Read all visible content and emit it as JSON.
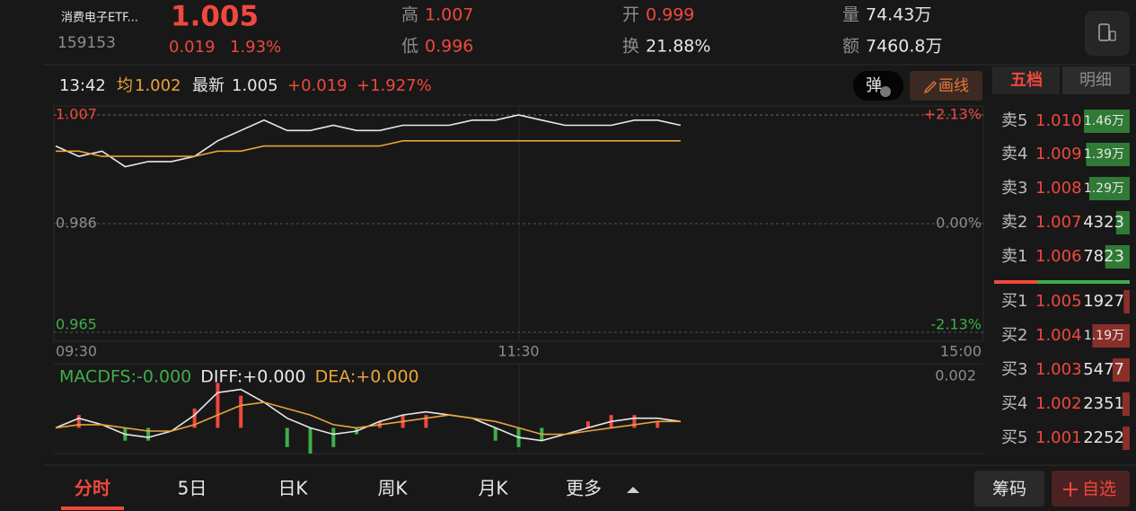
{
  "header": {
    "name": "消费电子ETF...",
    "code": "159153",
    "price": "1.005",
    "change": "0.019",
    "pct": "1.93%",
    "high_label": "高",
    "high": "1.007",
    "low_label": "低",
    "low": "0.996",
    "open_label": "开",
    "open": "0.999",
    "turnover_label": "换",
    "turnover": "21.88%",
    "volume_label": "量",
    "volume": "74.43万",
    "amount_label": "额",
    "amount": "7460.8万"
  },
  "info": {
    "time": "13:42",
    "avg_label": "均",
    "avg": "1.002",
    "latest_label": "最新",
    "latest": "1.005",
    "change": "+0.019",
    "pct": "+1.927%",
    "popup_button": "弹",
    "draw_button": "画线"
  },
  "chart_data": [
    {
      "type": "line",
      "categories": [
        "09:30",
        null,
        null,
        null,
        null,
        null,
        null,
        null,
        null,
        null,
        null,
        null,
        null,
        null,
        null,
        null,
        null,
        null,
        null,
        null,
        "11:30",
        null,
        null,
        null,
        null,
        null,
        null,
        null,
        null,
        null,
        null,
        null,
        null,
        null,
        null,
        null,
        null,
        null,
        null,
        null,
        "15:00"
      ],
      "series": [
        {
          "color": "#e8e8e8",
          "values": [
            1.001,
            0.999,
            1.0,
            0.997,
            0.998,
            0.998,
            0.999,
            1.002,
            1.004,
            1.006,
            1.004,
            1.004,
            1.005,
            1.004,
            1.004,
            1.005,
            1.005,
            1.005,
            1.006,
            1.006,
            1.007,
            1.006,
            1.005,
            1.005,
            1.005,
            1.006,
            1.006,
            1.005,
            null,
            null,
            null,
            null,
            null,
            null,
            null,
            null,
            null,
            null,
            null,
            null,
            null
          ]
        },
        {
          "color": "#e9a23b",
          "values": [
            1.0,
            1.0,
            0.999,
            0.999,
            0.999,
            0.999,
            0.999,
            1.0,
            1.0,
            1.001,
            1.001,
            1.001,
            1.001,
            1.001,
            1.001,
            1.002,
            1.002,
            1.002,
            1.002,
            1.002,
            1.002,
            1.002,
            1.002,
            1.002,
            1.002,
            1.002,
            1.002,
            1.002,
            null,
            null,
            null,
            null,
            null,
            null,
            null,
            null,
            null,
            null,
            null,
            null,
            null
          ]
        }
      ],
      "ylim": [
        0.965,
        1.007
      ],
      "yticks": [
        1.007,
        0.986,
        0.965
      ],
      "y2lim": [
        -2.13,
        2.13
      ],
      "y2ticks": [
        {
          "value": 2.13,
          "label": "+2.13%"
        },
        {
          "value": 0,
          "label": "0.00%"
        },
        {
          "value": -2.13,
          "label": "-2.13%"
        }
      ],
      "grid": true,
      "up_color": "#f0483c",
      "flat_color": "#8d8d8d",
      "down_color": "#3fae49"
    },
    {
      "type": "line",
      "series": [
        {
          "name": "MACDFS:-0.000",
          "type": "bar",
          "color": "#3fae49",
          "positive_color": "#f0483c",
          "values": [
            0,
            0.0004,
            0,
            -0.0004,
            -0.0004,
            0,
            0.0006,
            0.0014,
            0.001,
            0,
            -0.0006,
            -0.0008,
            -0.0006,
            -0.0002,
            0.0002,
            0.0004,
            0.0004,
            0,
            0,
            -0.0004,
            -0.0006,
            -0.0004,
            0,
            0.0002,
            0.0004,
            0.0004,
            0.0002,
            0,
            null,
            null,
            null,
            null,
            null,
            null,
            null,
            null,
            null,
            null,
            null,
            null,
            null
          ]
        },
        {
          "name": "DIFF:+0.000",
          "color": "#e8e8e8",
          "values": [
            0,
            0.0003,
            0.0001,
            -0.0002,
            -0.0003,
            -0.0001,
            0.0004,
            0.0011,
            0.0012,
            0.0008,
            0.0003,
            0,
            -0.0002,
            -0.0001,
            0.0002,
            0.0004,
            0.0005,
            0.0004,
            0.0003,
            0,
            -0.0003,
            -0.0004,
            -0.0002,
            0,
            0.0002,
            0.0003,
            0.0003,
            0.0002,
            null,
            null,
            null,
            null,
            null,
            null,
            null,
            null,
            null,
            null,
            null,
            null,
            null
          ]
        },
        {
          "name": "DEA:+0.000",
          "color": "#e9a23b",
          "values": [
            0,
            0.0001,
            0.0001,
            0,
            -0.0001,
            -0.0001,
            0.0001,
            0.0004,
            0.0007,
            0.0008,
            0.0006,
            0.0004,
            0.0001,
            0,
            0.0001,
            0.0002,
            0.0003,
            0.0004,
            0.0003,
            0.0002,
            0,
            -0.0002,
            -0.0002,
            -0.0001,
            0,
            0.0001,
            0.0002,
            0.0002,
            null,
            null,
            null,
            null,
            null,
            null,
            null,
            null,
            null,
            null,
            null,
            null,
            null
          ]
        }
      ],
      "ylim": [
        -0.0008,
        0.002
      ],
      "yticks": [
        0.002
      ]
    }
  ],
  "order_book": {
    "tabs": [
      "五档",
      "明细"
    ],
    "sell": [
      {
        "label": "卖5",
        "price": "1.010",
        "volume": 14600,
        "volume_label": "1.46万"
      },
      {
        "label": "卖4",
        "price": "1.009",
        "volume": 13900,
        "volume_label": "1.39万"
      },
      {
        "label": "卖3",
        "price": "1.008",
        "volume": 12900,
        "volume_label": "1.29万"
      },
      {
        "label": "卖2",
        "price": "1.007",
        "volume": 4323
      },
      {
        "label": "卖1",
        "price": "1.006",
        "volume": 7823
      }
    ],
    "buy": [
      {
        "label": "买1",
        "price": "1.005",
        "volume": 1927
      },
      {
        "label": "买2",
        "price": "1.004",
        "volume": 11900,
        "volume_label": "1.19万"
      },
      {
        "label": "买3",
        "price": "1.003",
        "volume": 5477
      },
      {
        "label": "买4",
        "price": "1.002",
        "volume": 2351
      },
      {
        "label": "买5",
        "price": "1.001",
        "volume": 2252
      }
    ]
  },
  "footer": {
    "tabs": [
      "分时",
      "5日",
      "日K",
      "周K",
      "月K",
      "更多"
    ],
    "chips_button": "筹码",
    "watchlist_button": "自选"
  }
}
